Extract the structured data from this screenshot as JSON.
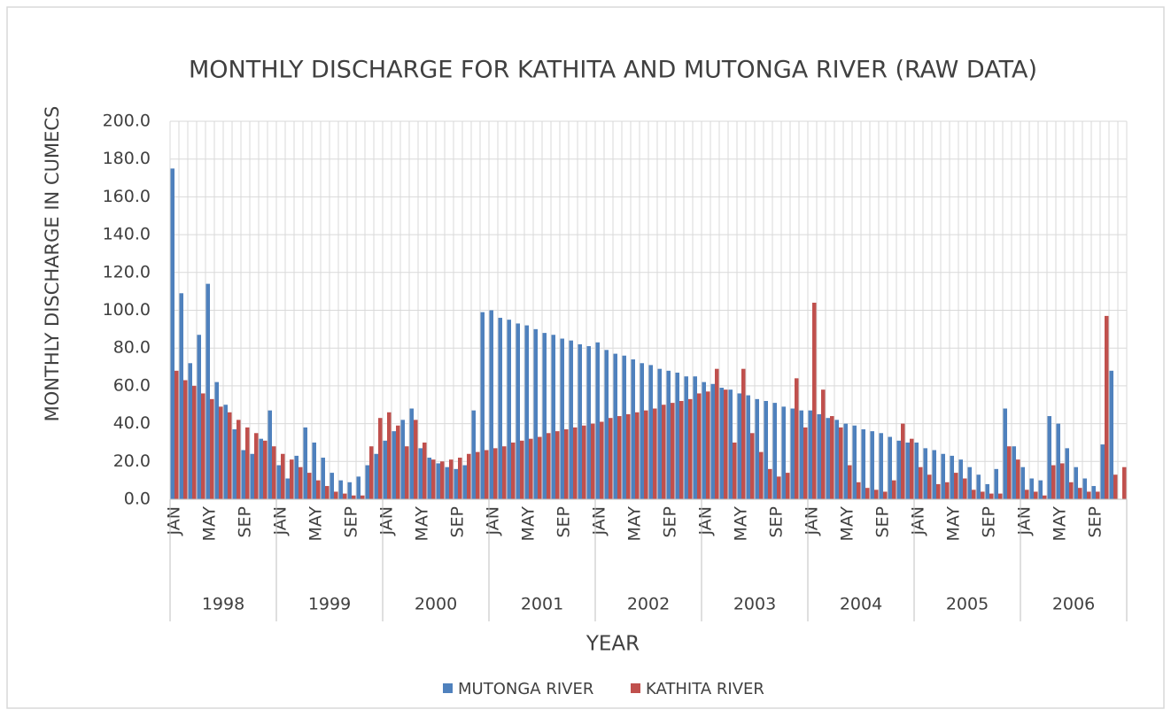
{
  "chart_data": {
    "type": "bar",
    "title": "MONTHLY DISCHARGE FOR KATHITA AND MUTONGA RIVER (RAW DATA)",
    "x_label": "YEAR",
    "y_label": "MONTHLY DISCHARGE IN CUMECS",
    "categories": [
      "JAN",
      null,
      null,
      null,
      "MAY",
      null,
      null,
      null,
      "SEP",
      null,
      null,
      null,
      "JAN",
      null,
      null,
      null,
      "MAY",
      null,
      null,
      null,
      "SEP",
      null,
      null,
      null,
      "JAN",
      null,
      null,
      null,
      "MAY",
      null,
      null,
      null,
      "SEP",
      null,
      null,
      null,
      "JAN",
      null,
      null,
      null,
      "MAY",
      null,
      null,
      null,
      "SEP",
      null,
      null,
      null,
      "JAN",
      null,
      null,
      null,
      "MAY",
      null,
      null,
      null,
      "SEP",
      null,
      null,
      null,
      "JAN",
      null,
      null,
      null,
      "MAY",
      null,
      null,
      null,
      "SEP",
      null,
      null,
      null,
      "JAN",
      null,
      null,
      null,
      "MAY",
      null,
      null,
      null,
      "SEP",
      null,
      null,
      null,
      "JAN",
      null,
      null,
      null,
      "MAY",
      null,
      null,
      null,
      "SEP",
      null,
      null,
      null,
      "JAN",
      null,
      null,
      null,
      "MAY",
      null,
      null,
      null,
      "SEP",
      null,
      null,
      null
    ],
    "years": [
      "1998",
      "1999",
      "2000",
      "2001",
      "2002",
      "2003",
      "2004",
      "2005",
      "2006"
    ],
    "series": [
      {
        "name": "MUTONGA RIVER",
        "color": "#4f81bd",
        "values": [
          175,
          109,
          72,
          87,
          114,
          62,
          50,
          37,
          26,
          24,
          32,
          47,
          18,
          11,
          23,
          38,
          30,
          22,
          14,
          10,
          9,
          12,
          18,
          24,
          31,
          36,
          42,
          48,
          27,
          22,
          19,
          17,
          16,
          18,
          47,
          99,
          100,
          96,
          95,
          93,
          92,
          90,
          88,
          87,
          85,
          84,
          82,
          81,
          83,
          79,
          77,
          76,
          74,
          72,
          71,
          69,
          68,
          67,
          65,
          65,
          62,
          61,
          59,
          58,
          56,
          55,
          53,
          52,
          51,
          49,
          48,
          47,
          47,
          45,
          43,
          42,
          40,
          39,
          37,
          36,
          35,
          33,
          31,
          30,
          30,
          27,
          26,
          24,
          23,
          21,
          17,
          13,
          8,
          16,
          48,
          28,
          17,
          11,
          10,
          44,
          40,
          27,
          17,
          11,
          7,
          29,
          68,
          null
        ]
      },
      {
        "name": "KATHITA RIVER",
        "color": "#c0504d",
        "values": [
          68,
          63,
          60,
          56,
          53,
          49,
          46,
          42,
          38,
          35,
          31,
          28,
          24,
          21,
          17,
          14,
          10,
          7,
          4,
          3,
          2,
          2,
          28,
          43,
          46,
          39,
          28,
          42,
          30,
          21,
          20,
          21,
          22,
          24,
          25,
          26,
          27,
          28,
          30,
          31,
          32,
          33,
          35,
          36,
          37,
          38,
          39,
          40,
          41,
          43,
          44,
          45,
          46,
          47,
          48,
          50,
          51,
          52,
          53,
          56,
          57,
          69,
          58,
          30,
          69,
          35,
          25,
          16,
          12,
          14,
          64,
          38,
          104,
          58,
          44,
          38,
          18,
          9,
          6,
          5,
          4,
          10,
          40,
          32,
          17,
          13,
          8,
          9,
          14,
          11,
          5,
          4,
          3,
          3,
          28,
          21,
          5,
          4,
          2,
          18,
          19,
          9,
          6,
          4,
          4,
          97,
          13,
          17
        ]
      }
    ],
    "ylim": [
      0,
      200
    ],
    "yticks": [
      {
        "value": 0,
        "label": "0.0"
      },
      {
        "value": 20,
        "label": "20.0"
      },
      {
        "value": 40,
        "label": "40.0"
      },
      {
        "value": 60,
        "label": "60.0"
      },
      {
        "value": 80,
        "label": "80.0"
      },
      {
        "value": 100,
        "label": "100.0"
      },
      {
        "value": 120,
        "label": "120.0"
      },
      {
        "value": 140,
        "label": "140.0"
      },
      {
        "value": 160,
        "label": "160.0"
      },
      {
        "value": 180,
        "label": "180.0"
      },
      {
        "value": 200,
        "label": "200.0"
      }
    ],
    "grid": true,
    "legend": "bottom"
  }
}
